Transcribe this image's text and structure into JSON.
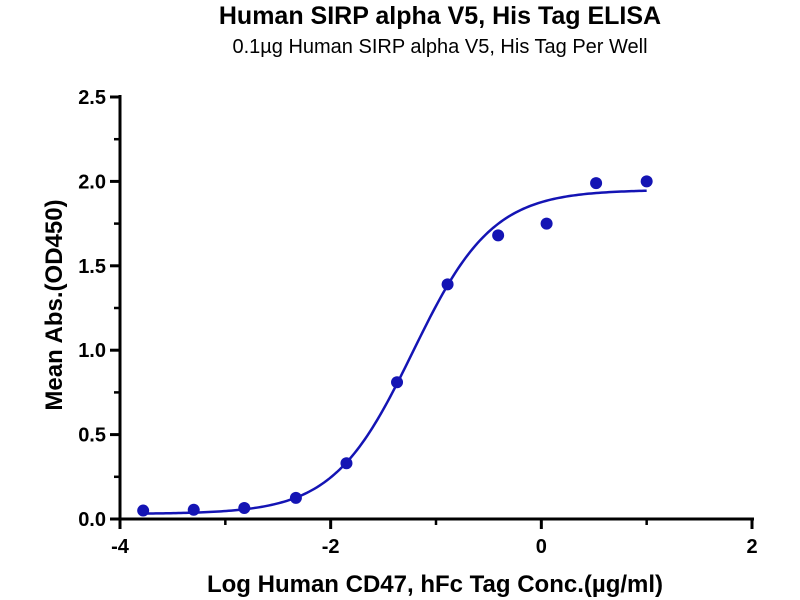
{
  "chart_data": {
    "type": "scatter",
    "title": "Human SIRP alpha V5, His Tag ELISA",
    "subtitle": "0.1µg Human SIRP alpha V5, His Tag Per Well",
    "xlabel": "Log Human CD47, hFc Tag Conc.(µg/ml)",
    "ylabel": "Mean Abs.(OD450)",
    "xlim": [
      -4,
      2
    ],
    "ylim": [
      0,
      2.5
    ],
    "x_ticks": [
      -4,
      -2,
      0,
      2
    ],
    "x_tick_labels": [
      "-4",
      "-2",
      "0",
      "2"
    ],
    "y_ticks": [
      0,
      0.5,
      1.0,
      1.5,
      2.0,
      2.5
    ],
    "y_tick_labels": [
      "0.0",
      "0.5",
      "1.0",
      "1.5",
      "2.0",
      "2.5"
    ],
    "grid": false,
    "series": [
      {
        "x": [
          -3.78,
          -3.3,
          -2.82,
          -2.33,
          -1.85,
          -1.37,
          -0.89,
          -0.41,
          0.05,
          0.52,
          1.0
        ],
        "y": [
          0.05,
          0.055,
          0.065,
          0.125,
          0.33,
          0.81,
          1.39,
          1.68,
          1.75,
          1.99,
          2.0
        ],
        "color": "#1414b4"
      }
    ],
    "fit_curve": {
      "model": "4PL",
      "bottom": 0.03,
      "top": 1.95,
      "log_ec50": -1.22,
      "hill": 1.15,
      "x_range": [
        -3.78,
        1.0
      ],
      "color": "#1414b4"
    }
  }
}
